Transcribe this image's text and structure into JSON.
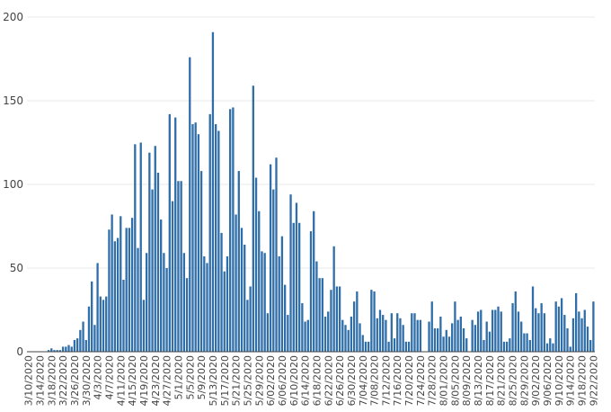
{
  "chart_data": {
    "type": "bar",
    "title": "",
    "xlabel": "",
    "ylabel": "",
    "ylim": [
      0,
      200
    ],
    "yticks": [
      0,
      50,
      100,
      150,
      200
    ],
    "grid": true,
    "bar_color": "#2f6ea8",
    "start_date": "3/10/2020",
    "end_date": "9/22/2020",
    "tick_interval_days": 4,
    "x_tick_labels": [
      "3/10/2020",
      "3/14/2020",
      "3/18/2020",
      "3/22/2020",
      "3/26/2020",
      "3/30/2020",
      "4/3/2020",
      "4/7/2020",
      "4/11/2020",
      "4/15/2020",
      "4/19/2020",
      "4/23/2020",
      "4/27/2020",
      "5/1/2020",
      "5/5/2020",
      "5/9/2020",
      "5/13/2020",
      "5/17/2020",
      "5/21/2020",
      "5/25/2020",
      "5/29/2020",
      "6/02/2020",
      "6/06/2020",
      "6/10/2020",
      "6/14/2020",
      "6/18/2020",
      "6/22/2020",
      "6/26/2020",
      "6/30/2020",
      "7/04/2020",
      "7/08/2020",
      "7/12/2020",
      "7/16/2020",
      "7/20/2020",
      "7/24/2020",
      "7/28/2020",
      "8/01/2020",
      "8/05/2020",
      "8/09/2020",
      "8/13/2020",
      "8/17/2020",
      "8/21/2020",
      "8/25/2020",
      "8/29/2020",
      "9/02/2020",
      "9/06/2020",
      "9/10/2020",
      "9/14/2020",
      "9/18/2020",
      "9/22/2020"
    ],
    "values": [
      0,
      0,
      0,
      0,
      0,
      0,
      0,
      1,
      2,
      1,
      1,
      1,
      3,
      3,
      4,
      3,
      7,
      8,
      13,
      18,
      7,
      27,
      42,
      16,
      53,
      33,
      31,
      33,
      73,
      82,
      66,
      68,
      81,
      43,
      74,
      74,
      80,
      124,
      62,
      125,
      31,
      59,
      119,
      97,
      123,
      107,
      79,
      59,
      50,
      142,
      90,
      140,
      102,
      102,
      59,
      44,
      176,
      136,
      137,
      130,
      108,
      57,
      53,
      142,
      191,
      136,
      132,
      71,
      48,
      57,
      145,
      146,
      82,
      108,
      74,
      64,
      31,
      39,
      159,
      104,
      84,
      60,
      59,
      23,
      112,
      97,
      116,
      57,
      69,
      40,
      22,
      94,
      77,
      89,
      77,
      29,
      18,
      19,
      72,
      84,
      54,
      44,
      44,
      21,
      24,
      37,
      63,
      39,
      39,
      19,
      16,
      13,
      21,
      30,
      36,
      17,
      10,
      6,
      6,
      37,
      36,
      20,
      25,
      22,
      19,
      6,
      23,
      8,
      23,
      20,
      16,
      6,
      6,
      23,
      23,
      19,
      19,
      0,
      0,
      18,
      30,
      14,
      14,
      21,
      9,
      13,
      9,
      17,
      30,
      19,
      21,
      14,
      8,
      0,
      19,
      16,
      24,
      25,
      7,
      18,
      12,
      25,
      25,
      27,
      24,
      6,
      6,
      8,
      29,
      36,
      24,
      18,
      11,
      11,
      7,
      39,
      26,
      23,
      29,
      23,
      5,
      8,
      5,
      30,
      27,
      32,
      22,
      14,
      3,
      20,
      35,
      24,
      20,
      25,
      15,
      7,
      30
    ]
  }
}
